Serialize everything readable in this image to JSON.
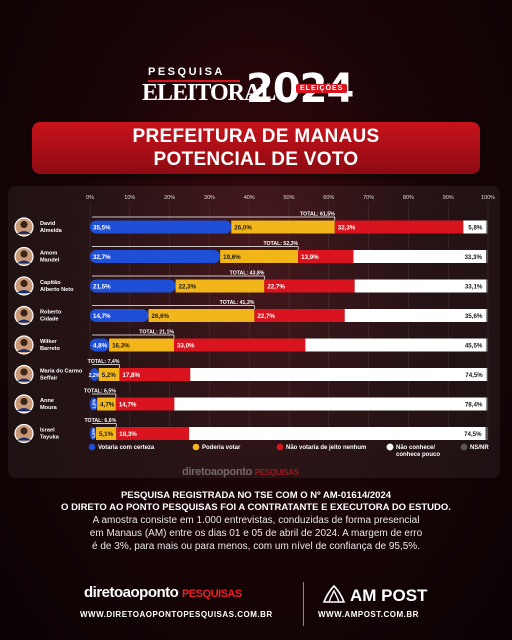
{
  "header": {
    "small_title": "PESQUISA",
    "big_title": "ELEITORAL",
    "year": "2024",
    "badge": "ELEIÇÕES"
  },
  "title": {
    "line1": "PREFEITURA DE MANAUS",
    "line2": "POTENCIAL DE VOTO"
  },
  "colors": {
    "certeza": "#1f4fd6",
    "poderia": "#f2b61b",
    "nao_votaria": "#d9141e",
    "nao_conhece": "#ffffff",
    "ns_nr": "#555555",
    "accent": "#c8121b"
  },
  "chart_data": {
    "type": "bar",
    "stacked": true,
    "orientation": "horizontal",
    "xlim": [
      0,
      100
    ],
    "ticks": [
      "0%",
      "10%",
      "20%",
      "30%",
      "40%",
      "50%",
      "60%",
      "70%",
      "80%",
      "90%",
      "100%"
    ],
    "categories": [
      "David Almeida",
      "Amom Mandel",
      "Capitão Alberto Neto",
      "Roberto Cidade",
      "Wilker Barreto",
      "Maria do Carmo Seffair",
      "Anne Moura",
      "Israel Tayuka"
    ],
    "category_lines": [
      [
        "David",
        "Almeida"
      ],
      [
        "Amom",
        "Mandel"
      ],
      [
        "Capitão",
        "Alberto Neto"
      ],
      [
        "Roberto",
        "Cidade"
      ],
      [
        "Wilker",
        "Barreto"
      ],
      [
        "Maria do Carmo",
        "Seffair"
      ],
      [
        "Anne",
        "Moura"
      ],
      [
        "Israel",
        "Tayuka"
      ]
    ],
    "series": [
      {
        "name": "Votaria com certeza",
        "values": [
          35.5,
          32.7,
          21.5,
          14.7,
          4.8,
          2.2,
          1.8,
          1.5
        ]
      },
      {
        "name": "Poderia votar",
        "values": [
          26.0,
          19.6,
          22.3,
          26.6,
          16.3,
          5.2,
          4.7,
          5.1
        ]
      },
      {
        "name": "Não votaria de jeito nenhum",
        "values": [
          32.3,
          13.9,
          22.7,
          22.7,
          33.0,
          17.8,
          14.7,
          18.3
        ]
      },
      {
        "name": "Não conhece/ conhece pouco",
        "values": [
          5.8,
          33.3,
          33.1,
          35.6,
          45.5,
          74.5,
          78.4,
          74.5
        ]
      },
      {
        "name": "NS/NR",
        "values": [
          0.4,
          0.5,
          0.4,
          0.4,
          0.4,
          0.3,
          0.4,
          0.6
        ]
      }
    ],
    "value_labels": [
      [
        "35,5%",
        "26,0%",
        "32,3%",
        "5,8%"
      ],
      [
        "32,7%",
        "19,6%",
        "13,9%",
        "33,3%"
      ],
      [
        "21,5%",
        "22,3%",
        "22,7%",
        "33,1%"
      ],
      [
        "14,7%",
        "26,6%",
        "22,7%",
        "35,6%"
      ],
      [
        "4,8%",
        "16,3%",
        "33,0%",
        "45,5%"
      ],
      [
        "2,2%",
        "5,2%",
        "17,8%",
        "74,5%"
      ],
      [
        "1,8%",
        "4,7%",
        "14,7%",
        "78,4%"
      ],
      [
        "1,5%",
        "5,1%",
        "18,3%",
        "74,5%"
      ]
    ],
    "totals": [
      "TOTAL: 61,5%",
      "TOTAL: 52,3%",
      "TOTAL: 43,8%",
      "TOTAL: 41,3%",
      "TOTAL: 21,1%",
      "TOTAL: 7,4%",
      "TOTAL: 6,5%",
      "TOTAL: 6,6%"
    ],
    "legend": [
      "Votaria com certeza",
      "Poderia votar",
      "Não votaria de jeito nenhum",
      "Não conhece/ conhece pouco",
      "NS/NR"
    ],
    "legend_lines": [
      [
        "Votaria com certeza"
      ],
      [
        "Poderia votar"
      ],
      [
        "Não votaria de jeito nenhum"
      ],
      [
        "Não conhece/",
        "conhece pouco"
      ],
      [
        "NS/NR"
      ]
    ]
  },
  "info": {
    "line1": "PESQUISA REGISTRADA NO TSE COM O Nº AM-01614/2024",
    "line2": "O DIRETO AO PONTO PESQUISAS FOI A CONTRATANTE E EXECUTORA DO ESTUDO.",
    "line3": "A amostra consiste em 1.000 entrevistas, conduzidas de forma presencial",
    "line4": "em Manaus (AM) entre os dias 01 e 05 de abril de 2024. A margem de erro",
    "line5": "é de 3%, para mais ou para menos, com um nível de confiança de 95,5%."
  },
  "watermark": {
    "brand": "diretoaoponto",
    "suffix": "PESQUISAS"
  },
  "footer": {
    "brand": "diretoaoponto",
    "brand_suffix": "PESQUISAS",
    "url1": "WWW.DIRETOAOPONTOPESQUISAS.COM.BR",
    "am_brand": "AM POST",
    "url2": "WWW.AMPOST.COM.BR"
  }
}
